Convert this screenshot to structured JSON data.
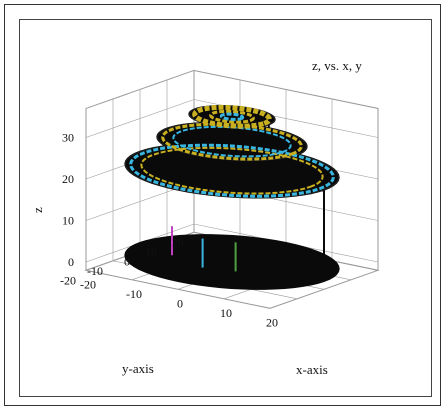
{
  "chart_data": {
    "type": "surface3d",
    "title": "z, vs.   x, y",
    "xlabel": "x-axis",
    "ylabel": "y-axis",
    "zlabel": "z",
    "x_ticks": [
      "-20",
      "-10",
      "0",
      "10",
      "20"
    ],
    "y_ticks": [
      "-20",
      "-10",
      "0",
      "10",
      "20"
    ],
    "z_ticks": [
      "0",
      "10",
      "20",
      "30"
    ],
    "xlim": [
      -20,
      20
    ],
    "ylim": [
      -20,
      20
    ],
    "zlim": [
      -2,
      37
    ],
    "grid": true,
    "description_levels": [
      {
        "radius": 20,
        "z_top": 22
      },
      {
        "radius": 14,
        "z_top": 29
      },
      {
        "radius": 8,
        "z_top": 35
      }
    ],
    "colors": {
      "body": "#0a0a0a",
      "top_yellow": "#c9b020",
      "top_cyan": "#38b6e0",
      "accent_green": "#4fa040",
      "accent_magenta": "#c040c0",
      "grid": "#9a9a9a"
    }
  }
}
